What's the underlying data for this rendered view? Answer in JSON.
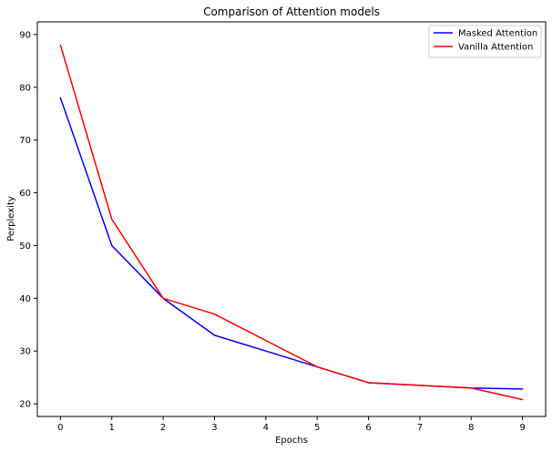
{
  "chart_data": {
    "type": "line",
    "title": "Comparison of Attention models",
    "xlabel": "Epochs",
    "ylabel": "Perplexity",
    "x": [
      0,
      1,
      2,
      3,
      4,
      5,
      6,
      7,
      8,
      9
    ],
    "xticks": [
      "0",
      "1",
      "2",
      "3",
      "4",
      "5",
      "6",
      "7",
      "8",
      "9"
    ],
    "yticks": [
      "20",
      "30",
      "40",
      "50",
      "60",
      "70",
      "80",
      "90"
    ],
    "xlim": [
      -0.45,
      9.45
    ],
    "ylim": [
      17.6,
      92.4
    ],
    "grid": false,
    "legend_position": "top-right",
    "series": [
      {
        "name": "Masked Attention",
        "color": "#0000ff",
        "values": [
          78,
          50,
          40,
          33,
          30,
          27,
          24,
          23.5,
          23,
          22.8
        ]
      },
      {
        "name": "Vanilla Attention",
        "color": "#ff0000",
        "values": [
          88,
          55,
          40,
          37,
          32,
          27,
          24,
          23.5,
          23,
          20.8
        ]
      }
    ]
  }
}
